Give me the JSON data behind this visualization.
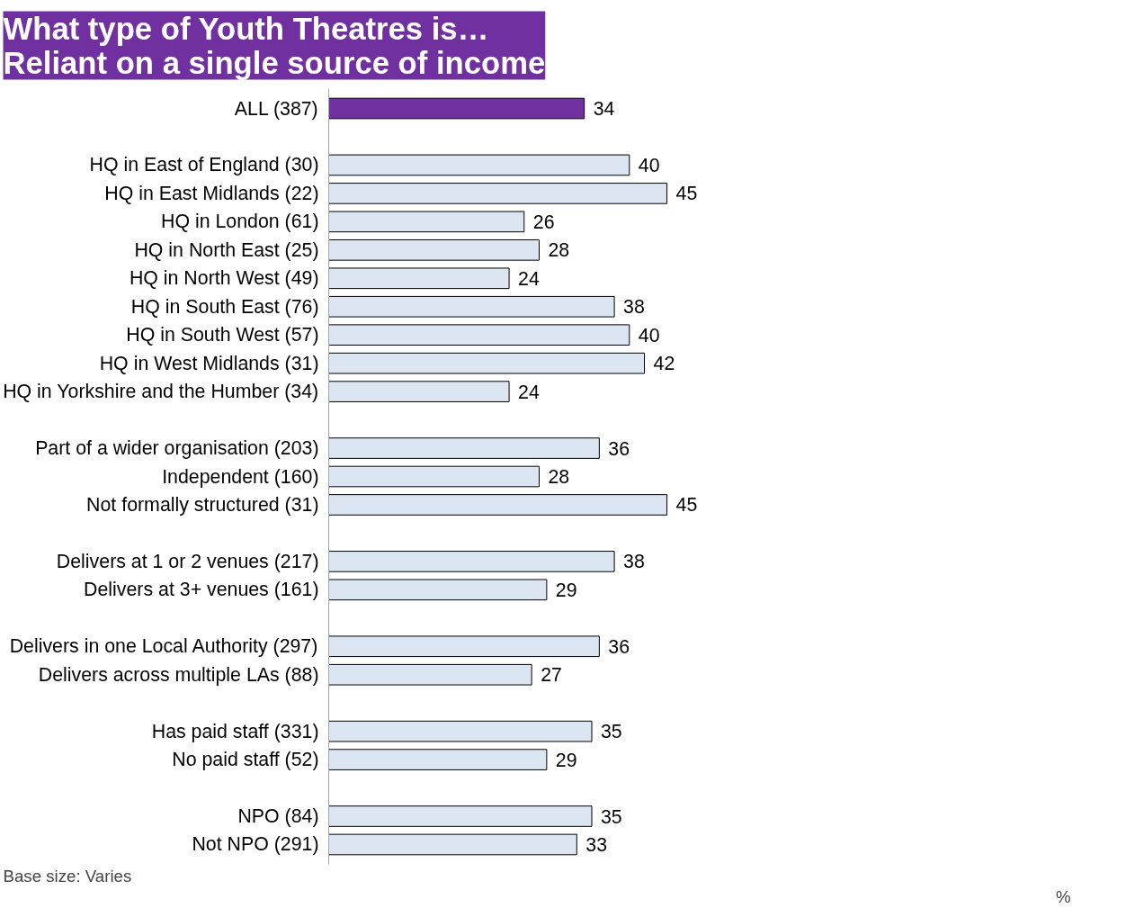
{
  "chart_data": {
    "type": "bar",
    "orientation": "horizontal",
    "title": "What type of Youth Theatres is…\nReliant on a single source of income",
    "categories": [
      "ALL (387)",
      null,
      "HQ in East of England (30)",
      "HQ in East Midlands (22)",
      "HQ in London (61)",
      "HQ in North East (25)",
      "HQ in North West (49)",
      "HQ in South East (76)",
      "HQ in South West (57)",
      "HQ in West Midlands (31)",
      "HQ in Yorkshire and the Humber (34)",
      null,
      "Part of a wider organisation (203)",
      "Independent (160)",
      "Not formally structured (31)",
      null,
      "Delivers at 1 or 2 venues (217)",
      "Delivers at 3+ venues (161)",
      null,
      "Delivers in one Local Authority (297)",
      "Delivers across multiple LAs (88)",
      null,
      "Has paid staff (331)",
      "No paid staff (52)",
      null,
      "NPO (84)",
      "Not NPO (291)"
    ],
    "values": [
      34,
      null,
      40,
      45,
      26,
      28,
      24,
      38,
      40,
      42,
      24,
      null,
      36,
      28,
      45,
      null,
      38,
      29,
      null,
      36,
      27,
      null,
      35,
      29,
      null,
      35,
      33
    ],
    "colors": [
      "#7030a0",
      null,
      "#dce6f2",
      "#dce6f2",
      "#dce6f2",
      "#dce6f2",
      "#dce6f2",
      "#dce6f2",
      "#dce6f2",
      "#dce6f2",
      "#dce6f2",
      null,
      "#dce6f2",
      "#dce6f2",
      "#dce6f2",
      null,
      "#dce6f2",
      "#dce6f2",
      null,
      "#dce6f2",
      "#dce6f2",
      null,
      "#dce6f2",
      "#dce6f2",
      null,
      "#dce6f2",
      "#dce6f2"
    ],
    "data_labels": true,
    "grid": false,
    "tick_labels": "y",
    "annotations": [
      "Base size: Varies",
      "%"
    ]
  }
}
